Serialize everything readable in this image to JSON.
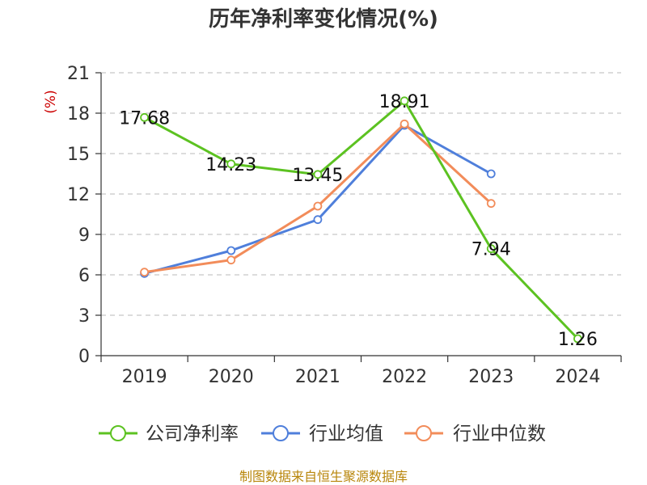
{
  "chart_data": {
    "type": "line",
    "title": "历年净利率变化情况(%)",
    "ylabel": "(%)",
    "xlabel": "",
    "categories": [
      "2019",
      "2020",
      "2021",
      "2022",
      "2023",
      "2024"
    ],
    "ylim": [
      0,
      21
    ],
    "yticks": [
      0,
      3,
      6,
      9,
      12,
      15,
      18,
      21
    ],
    "grid": true,
    "legend_position": "bottom",
    "series": [
      {
        "name": "公司净利率",
        "color": "#5cc221",
        "values": [
          17.68,
          14.23,
          13.45,
          18.91,
          7.94,
          1.26
        ],
        "labels": [
          "17.68",
          "14.23",
          "13.45",
          "18.91",
          "7.94",
          "1.26"
        ]
      },
      {
        "name": "行业均值",
        "color": "#4f7fdb",
        "values": [
          6.1,
          7.8,
          10.1,
          17.1,
          13.5,
          null
        ]
      },
      {
        "name": "行业中位数",
        "color": "#f28c5a",
        "values": [
          6.2,
          7.1,
          11.1,
          17.2,
          11.3,
          null
        ]
      }
    ],
    "source": "制图数据来自恒生聚源数据库"
  }
}
